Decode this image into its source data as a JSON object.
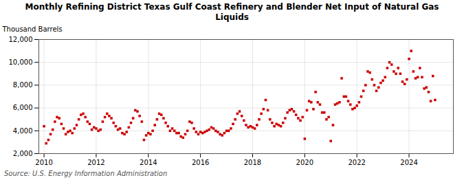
{
  "chart_data": {
    "type": "scatter",
    "title": "Monthly Refining District Texas Gulf Coast Refinery and Blender Net Input of Natural Gas\nLiquids",
    "ylabel": "Thousand Barrels",
    "source": "Source: U.S. Energy Information Administration",
    "color": "#cc0000",
    "marker": "square",
    "grid": true,
    "xlim": [
      2009.8,
      2025.7
    ],
    "xticks": [
      2010,
      2012,
      2014,
      2016,
      2018,
      2020,
      2022,
      2024
    ],
    "ylim": [
      2000,
      12000
    ],
    "yticks": [
      {
        "value": 2000,
        "label": "2,000"
      },
      {
        "value": 4000,
        "label": "4,000"
      },
      {
        "value": 6000,
        "label": "6,000"
      },
      {
        "value": 8000,
        "label": "8,000"
      },
      {
        "value": 10000,
        "label": "10,000"
      },
      {
        "value": 12000,
        "label": "12,000"
      }
    ],
    "x": [
      2010,
      2010.0833333333333,
      2010.1666666666667,
      2010.25,
      2010.3333333333333,
      2010.4166666666667,
      2010.5,
      2010.5833333333333,
      2010.6666666666667,
      2010.75,
      2010.8333333333333,
      2010.9166666666667,
      2011,
      2011.0833333333333,
      2011.1666666666667,
      2011.25,
      2011.3333333333333,
      2011.4166666666667,
      2011.5,
      2011.5833333333333,
      2011.6666666666667,
      2011.75,
      2011.8333333333333,
      2011.9166666666667,
      2012,
      2012.0833333333333,
      2012.1666666666667,
      2012.25,
      2012.3333333333333,
      2012.4166666666667,
      2012.5,
      2012.5833333333333,
      2012.6666666666667,
      2012.75,
      2012.8333333333333,
      2012.9166666666667,
      2013,
      2013.0833333333333,
      2013.1666666666667,
      2013.25,
      2013.3333333333333,
      2013.4166666666667,
      2013.5,
      2013.5833333333333,
      2013.6666666666667,
      2013.75,
      2013.8333333333333,
      2013.9166666666667,
      2014,
      2014.0833333333333,
      2014.1666666666667,
      2014.25,
      2014.3333333333333,
      2014.4166666666667,
      2014.5,
      2014.5833333333333,
      2014.6666666666667,
      2014.75,
      2014.8333333333333,
      2014.9166666666667,
      2015,
      2015.0833333333333,
      2015.1666666666667,
      2015.25,
      2015.3333333333333,
      2015.4166666666667,
      2015.5,
      2015.5833333333333,
      2015.6666666666667,
      2015.75,
      2015.8333333333333,
      2015.9166666666667,
      2016,
      2016.0833333333333,
      2016.1666666666667,
      2016.25,
      2016.3333333333333,
      2016.4166666666667,
      2016.5,
      2016.5833333333333,
      2016.6666666666667,
      2016.75,
      2016.8333333333333,
      2016.9166666666667,
      2017,
      2017.0833333333333,
      2017.1666666666667,
      2017.25,
      2017.3333333333333,
      2017.4166666666667,
      2017.5,
      2017.5833333333333,
      2017.6666666666667,
      2017.75,
      2017.8333333333333,
      2017.9166666666667,
      2018,
      2018.0833333333333,
      2018.1666666666667,
      2018.25,
      2018.3333333333333,
      2018.4166666666667,
      2018.5,
      2018.5833333333333,
      2018.6666666666667,
      2018.75,
      2018.8333333333333,
      2018.9166666666667,
      2019,
      2019.0833333333333,
      2019.1666666666667,
      2019.25,
      2019.3333333333333,
      2019.4166666666667,
      2019.5,
      2019.5833333333333,
      2019.6666666666667,
      2019.75,
      2019.8333333333333,
      2019.9166666666667,
      2020,
      2020.0833333333333,
      2020.1666666666667,
      2020.25,
      2020.3333333333333,
      2020.4166666666667,
      2020.5,
      2020.5833333333333,
      2020.6666666666667,
      2020.75,
      2020.8333333333333,
      2020.9166666666667,
      2021,
      2021.0833333333333,
      2021.1666666666667,
      2021.25,
      2021.3333333333333,
      2021.4166666666667,
      2021.5,
      2021.5833333333333,
      2021.6666666666667,
      2021.75,
      2021.8333333333333,
      2021.9166666666667,
      2022,
      2022.0833333333333,
      2022.1666666666667,
      2022.25,
      2022.3333333333333,
      2022.4166666666667,
      2022.5,
      2022.5833333333333,
      2022.6666666666667,
      2022.75,
      2022.8333333333333,
      2022.9166666666667,
      2023,
      2023.0833333333333,
      2023.1666666666667,
      2023.25,
      2023.3333333333333,
      2023.4166666666667,
      2023.5,
      2023.5833333333333,
      2023.6666666666667,
      2023.75,
      2023.8333333333333,
      2023.9166666666667,
      2024,
      2024.0833333333333,
      2024.1666666666667,
      2024.25,
      2024.3333333333333,
      2024.4166666666667,
      2024.5,
      2024.5833333333333,
      2024.6666666666667,
      2024.75,
      2024.8333333333333,
      2024.9166666666667,
      2025
    ],
    "values": [
      4400,
      2900,
      3200,
      3700,
      4100,
      4800,
      5200,
      5100,
      4600,
      4200,
      3700,
      3900,
      4000,
      3800,
      4200,
      4500,
      5000,
      5400,
      5500,
      5200,
      4800,
      4600,
      4100,
      4300,
      4200,
      4000,
      4100,
      4800,
      5200,
      5500,
      5300,
      5100,
      4700,
      4400,
      4100,
      4200,
      3800,
      3700,
      3900,
      4300,
      4700,
      5100,
      5800,
      5700,
      5300,
      4800,
      3200,
      3600,
      3800,
      3700,
      4000,
      4500,
      5000,
      5500,
      5400,
      5100,
      4700,
      4400,
      4000,
      4200,
      4000,
      3800,
      3800,
      3500,
      3400,
      3700,
      4000,
      4800,
      4700,
      4200,
      3900,
      3700,
      3900,
      3800,
      3900,
      4000,
      4100,
      4300,
      4200,
      4000,
      3900,
      3700,
      3600,
      3800,
      4000,
      4000,
      4200,
      4600,
      5000,
      5500,
      5700,
      5300,
      4900,
      4500,
      4300,
      4400,
      4300,
      4200,
      4500,
      5000,
      5500,
      5900,
      6700,
      5800,
      5000,
      4700,
      4400,
      4600,
      4500,
      4400,
      4700,
      5100,
      5600,
      5800,
      5900,
      5700,
      5400,
      5100,
      4900,
      5200,
      3300,
      5800,
      6600,
      6500,
      5900,
      7400,
      6500,
      6300,
      5600,
      5600,
      5000,
      5200,
      3100,
      4500,
      6300,
      6400,
      6500,
      8600,
      7000,
      7000,
      6600,
      6300,
      5900,
      6000,
      6200,
      6500,
      7000,
      7500,
      8000,
      9200,
      9100,
      8500,
      8000,
      7500,
      7800,
      8200,
      8400,
      8700,
      9500,
      10000,
      9800,
      9200,
      9000,
      9500,
      9000,
      8300,
      8100,
      8500,
      10300,
      11000,
      9200,
      8600,
      8700,
      9500,
      8700,
      7700,
      7800,
      7400,
      6600,
      8800,
      6700
    ]
  }
}
